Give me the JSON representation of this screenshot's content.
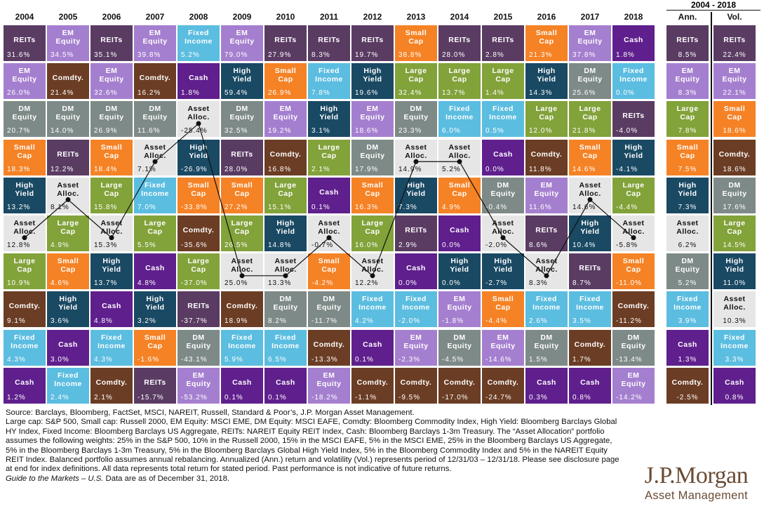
{
  "title": "",
  "range_label": "2004 - 2018",
  "colors": {
    "REITs": "#5a3c63",
    "EM Equity": "#a57fcf",
    "Comdty.": "#6b3d24",
    "DM Equity": "#7e8a87",
    "Cash": "#5f1f8d",
    "Fixed Income": "#5bbde0",
    "High Yield": "#1a4963",
    "Small Cap": "#f58225",
    "Large Cap": "#82a23a",
    "Asset Alloc.": "#e6e6e6"
  },
  "chart_data": {
    "type": "table",
    "columns": [
      "2004",
      "2005",
      "2006",
      "2007",
      "2008",
      "2009",
      "2010",
      "2011",
      "2012",
      "2013",
      "2014",
      "2015",
      "2016",
      "2017",
      "2018",
      "Ann.",
      "Vol."
    ],
    "rows": [
      [
        [
          "REITs",
          "31.6%"
        ],
        [
          "EM Equity",
          "34.5%"
        ],
        [
          "REITs",
          "35.1%"
        ],
        [
          "EM Equity",
          "39.8%"
        ],
        [
          "Fixed Income",
          "5.2%"
        ],
        [
          "EM Equity",
          "79.0%"
        ],
        [
          "REITs",
          "27.9%"
        ],
        [
          "REITs",
          "8.3%"
        ],
        [
          "REITs",
          "19.7%"
        ],
        [
          "Small Cap",
          "38.8%"
        ],
        [
          "REITs",
          "28.0%"
        ],
        [
          "REITs",
          "2.8%"
        ],
        [
          "Small Cap",
          "21.3%"
        ],
        [
          "EM Equity",
          "37.8%"
        ],
        [
          "Cash",
          "1.8%"
        ],
        [
          "REITs",
          "8.5%"
        ],
        [
          "REITs",
          "22.4%"
        ]
      ],
      [
        [
          "EM Equity",
          "26.0%"
        ],
        [
          "Comdty.",
          "21.4%"
        ],
        [
          "EM Equity",
          "32.6%"
        ],
        [
          "Comdty.",
          "16.2%"
        ],
        [
          "Cash",
          "1.8%"
        ],
        [
          "High Yield",
          "59.4%"
        ],
        [
          "Small Cap",
          "26.9%"
        ],
        [
          "Fixed Income",
          "7.8%"
        ],
        [
          "High Yield",
          "19.6%"
        ],
        [
          "Large Cap",
          "32.4%"
        ],
        [
          "Large Cap",
          "13.7%"
        ],
        [
          "Large Cap",
          "1.4%"
        ],
        [
          "High Yield",
          "14.3%"
        ],
        [
          "DM Equity",
          "25.6%"
        ],
        [
          "Fixed Income",
          "0.0%"
        ],
        [
          "EM Equity",
          "8.3%"
        ],
        [
          "EM Equity",
          "22.1%"
        ]
      ],
      [
        [
          "DM Equity",
          "20.7%"
        ],
        [
          "DM Equity",
          "14.0%"
        ],
        [
          "DM Equity",
          "26.9%"
        ],
        [
          "DM Equity",
          "11.6%"
        ],
        [
          "Asset Alloc.",
          "-25.4%"
        ],
        [
          "DM Equity",
          "32.5%"
        ],
        [
          "EM Equity",
          "19.2%"
        ],
        [
          "High Yield",
          "3.1%"
        ],
        [
          "EM Equity",
          "18.6%"
        ],
        [
          "DM Equity",
          "23.3%"
        ],
        [
          "Fixed Income",
          "6.0%"
        ],
        [
          "Fixed Income",
          "0.5%"
        ],
        [
          "Large Cap",
          "12.0%"
        ],
        [
          "Large Cap",
          "21.8%"
        ],
        [
          "REITs",
          "-4.0%"
        ],
        [
          "Large Cap",
          "7.8%"
        ],
        [
          "Small Cap",
          "18.6%"
        ]
      ],
      [
        [
          "Small Cap",
          "18.3%"
        ],
        [
          "REITs",
          "12.2%"
        ],
        [
          "Small Cap",
          "18.4%"
        ],
        [
          "Asset Alloc.",
          "7.1%"
        ],
        [
          "High Yield",
          "-26.9%"
        ],
        [
          "REITs",
          "28.0%"
        ],
        [
          "Comdty.",
          "16.8%"
        ],
        [
          "Large Cap",
          "2.1%"
        ],
        [
          "DM Equity",
          "17.9%"
        ],
        [
          "Asset Alloc.",
          "14.9%"
        ],
        [
          "Asset Alloc.",
          "5.2%"
        ],
        [
          "Cash",
          "0.0%"
        ],
        [
          "Comdty.",
          "11.8%"
        ],
        [
          "Small Cap",
          "14.6%"
        ],
        [
          "High Yield",
          "-4.1%"
        ],
        [
          "Small Cap",
          "7.5%"
        ],
        [
          "Comdty.",
          "18.6%"
        ]
      ],
      [
        [
          "High Yield",
          "13.2%"
        ],
        [
          "Asset Alloc.",
          "8.1%"
        ],
        [
          "Large Cap",
          "15.8%"
        ],
        [
          "Fixed Income",
          "7.0%"
        ],
        [
          "Small Cap",
          "-33.8%"
        ],
        [
          "Small Cap",
          "27.2%"
        ],
        [
          "Large Cap",
          "15.1%"
        ],
        [
          "Cash",
          "0.1%"
        ],
        [
          "Small Cap",
          "16.3%"
        ],
        [
          "High Yield",
          "7.3%"
        ],
        [
          "Small Cap",
          "4.9%"
        ],
        [
          "DM Equity",
          "-0.4%"
        ],
        [
          "EM Equity",
          "11.6%"
        ],
        [
          "Asset Alloc.",
          "14.6%"
        ],
        [
          "Large Cap",
          "-4.4%"
        ],
        [
          "High Yield",
          "7.3%"
        ],
        [
          "DM Equity",
          "17.6%"
        ]
      ],
      [
        [
          "Asset Alloc.",
          "12.8%"
        ],
        [
          "Large Cap",
          "4.9%"
        ],
        [
          "Asset Alloc.",
          "15.3%"
        ],
        [
          "Large Cap",
          "5.5%"
        ],
        [
          "Comdty.",
          "-35.6%"
        ],
        [
          "Large Cap",
          "26.5%"
        ],
        [
          "High Yield",
          "14.8%"
        ],
        [
          "Asset Alloc.",
          "-0.7%"
        ],
        [
          "Large Cap",
          "16.0%"
        ],
        [
          "REITs",
          "2.9%"
        ],
        [
          "Cash",
          "0.0%"
        ],
        [
          "Asset Alloc.",
          "-2.0%"
        ],
        [
          "REITs",
          "8.6%"
        ],
        [
          "High Yield",
          "10.4%"
        ],
        [
          "Asset Alloc.",
          "-5.8%"
        ],
        [
          "Asset Alloc.",
          "6.2%"
        ],
        [
          "Large Cap",
          "14.5%"
        ]
      ],
      [
        [
          "Large Cap",
          "10.9%"
        ],
        [
          "Small Cap",
          "4.6%"
        ],
        [
          "High Yield",
          "13.7%"
        ],
        [
          "Cash",
          "4.8%"
        ],
        [
          "Large Cap",
          "-37.0%"
        ],
        [
          "Asset Alloc.",
          "25.0%"
        ],
        [
          "Asset Alloc.",
          "13.3%"
        ],
        [
          "Small Cap",
          "-4.2%"
        ],
        [
          "Asset Alloc.",
          "12.2%"
        ],
        [
          "Cash",
          "0.0%"
        ],
        [
          "High Yield",
          "0.0%"
        ],
        [
          "High Yield",
          "-2.7%"
        ],
        [
          "Asset Alloc.",
          "8.3%"
        ],
        [
          "REITs",
          "8.7%"
        ],
        [
          "Small Cap",
          "-11.0%"
        ],
        [
          "DM Equity",
          "5.2%"
        ],
        [
          "High Yield",
          "11.0%"
        ]
      ],
      [
        [
          "Comdty.",
          "9.1%"
        ],
        [
          "High Yield",
          "3.6%"
        ],
        [
          "Cash",
          "4.8%"
        ],
        [
          "High Yield",
          "3.2%"
        ],
        [
          "REITs",
          "-37.7%"
        ],
        [
          "Comdty.",
          "18.9%"
        ],
        [
          "DM Equity",
          "8.2%"
        ],
        [
          "DM Equity",
          "-11.7%"
        ],
        [
          "Fixed Income",
          "4.2%"
        ],
        [
          "Fixed Income",
          "-2.0%"
        ],
        [
          "EM Equity",
          "-1.8%"
        ],
        [
          "Small Cap",
          "-4.4%"
        ],
        [
          "Fixed Income",
          "2.6%"
        ],
        [
          "Fixed Income",
          "3.5%"
        ],
        [
          "Comdty.",
          "-11.2%"
        ],
        [
          "Fixed Income",
          "3.9%"
        ],
        [
          "Asset Alloc.",
          "10.3%"
        ]
      ],
      [
        [
          "Fixed Income",
          "4.3%"
        ],
        [
          "Cash",
          "3.0%"
        ],
        [
          "Fixed Income",
          "4.3%"
        ],
        [
          "Small Cap",
          "-1.6%"
        ],
        [
          "DM Equity",
          "-43.1%"
        ],
        [
          "Fixed Income",
          "5.9%"
        ],
        [
          "Fixed Income",
          "6.5%"
        ],
        [
          "Comdty.",
          "-13.3%"
        ],
        [
          "Cash",
          "0.1%"
        ],
        [
          "EM Equity",
          "-2.3%"
        ],
        [
          "DM Equity",
          "-4.5%"
        ],
        [
          "EM Equity",
          "-14.6%"
        ],
        [
          "DM Equity",
          "1.5%"
        ],
        [
          "Comdty.",
          "1.7%"
        ],
        [
          "DM Equity",
          "-13.4%"
        ],
        [
          "Cash",
          "1.3%"
        ],
        [
          "Fixed Income",
          "3.3%"
        ]
      ],
      [
        [
          "Cash",
          "1.2%"
        ],
        [
          "Fixed Income",
          "2.4%"
        ],
        [
          "Comdty.",
          "2.1%"
        ],
        [
          "REITs",
          "-15.7%"
        ],
        [
          "EM Equity",
          "-53.2%"
        ],
        [
          "Cash",
          "0.1%"
        ],
        [
          "Cash",
          "0.1%"
        ],
        [
          "EM Equity",
          "-18.2%"
        ],
        [
          "Comdty.",
          "-1.1%"
        ],
        [
          "Comdty.",
          "-9.5%"
        ],
        [
          "Comdty.",
          "-17.0%"
        ],
        [
          "Comdty.",
          "-24.7%"
        ],
        [
          "Cash",
          "0.3%"
        ],
        [
          "Cash",
          "0.8%"
        ],
        [
          "EM Equity",
          "-14.2%"
        ],
        [
          "Comdty.",
          "-2.5%"
        ],
        [
          "Cash",
          "0.8%"
        ]
      ]
    ],
    "labels": {
      "REITs": "REITs",
      "EM Equity": "EM\nEquity",
      "Comdty.": "Comdty.",
      "DM Equity": "DM\nEquity",
      "Cash": "Cash",
      "Fixed Income": "Fixed\nIncome",
      "High Yield": "High\nYield",
      "Small Cap": "Small\nCap",
      "Large Cap": "Large\nCap",
      "Asset Alloc.": "Asset\nAlloc."
    }
  },
  "footnote": {
    "source": "Source: Barclays, Bloomberg, FactSet, MSCI, NAREIT, Russell, Standard & Poor’s, J.P. Morgan Asset Management.",
    "definitions": "Large cap: S&P 500, Small cap: Russell 2000, EM Equity: MSCI EME, DM Equity: MSCI EAFE, Comdty: Bloomberg Commodity Index, High Yield: Bloomberg Barclays Global HY Index, Fixed Income: Bloomberg Barclays US Aggregate, REITs: NAREIT Equity REIT Index, Cash: Bloomberg Barclays 1-3m Treasury. The “Asset Allocation” portfolio assumes the following weights: 25% in the S&P 500, 10% in the Russell 2000, 15% in the MSCI EAFE, 5% in the MSCI EME, 25% in the Bloomberg Barclays US Aggregate, 5% in the Bloomberg Barclays 1-3m Treasury, 5% in the Bloomberg Barclays Global High Yield Index, 5% in the Bloomberg Commodity Index and 5% in the NAREIT Equity REIT Index. Balanced portfolio assumes annual rebalancing. Annualized (Ann.) return and volatility (Vol.) represents period of 12/31/03 – 12/31/18. Please see disclosure page at end for index definitions. All data represents total return for stated period. Past performance is not indicative of future returns.",
    "guide_title": "Guide to the Markets – U.S.",
    "guide_rest": " Data are as of December 31, 2018."
  },
  "logo": {
    "brand": "J.P.Morgan",
    "sub": "Asset Management"
  }
}
